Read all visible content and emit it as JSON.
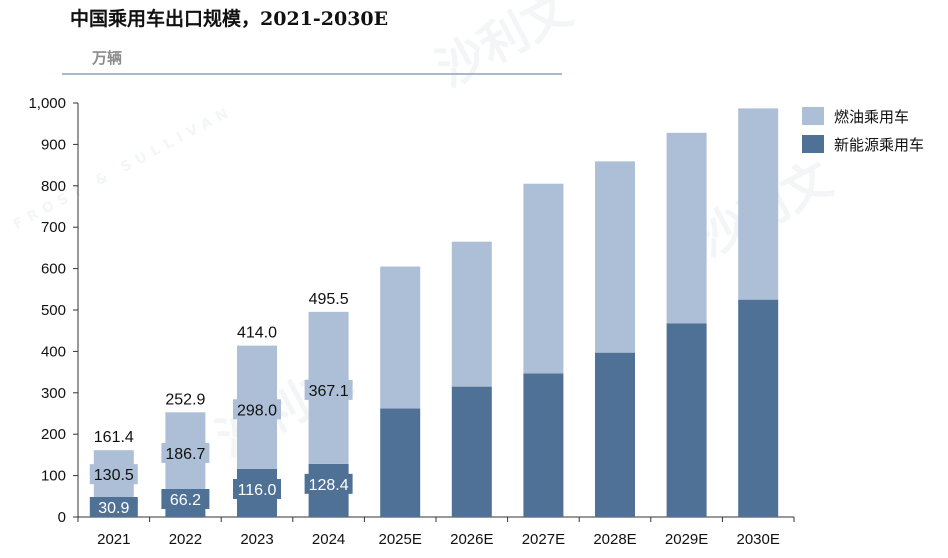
{
  "title": "中国乘用车出口规模，2021-2030E",
  "unit": "万辆",
  "colors": {
    "ice": "#adbfd6",
    "nev": "#4f7196",
    "axis": "#333333",
    "rule": "#a9b9c9"
  },
  "watermarks": [
    "沙利文",
    "沙利文",
    "沙利文",
    "FROST & SULLIVAN"
  ],
  "chart_data": {
    "type": "bar",
    "stacked": true,
    "categories": [
      "2021",
      "2022",
      "2023",
      "2024",
      "2025E",
      "2026E",
      "2027E",
      "2028E",
      "2029E",
      "2030E"
    ],
    "series": [
      {
        "name": "新能源乘用车",
        "values": [
          30.9,
          66.2,
          116.0,
          128.4,
          262,
          315,
          347,
          397,
          468,
          525
        ]
      },
      {
        "name": "燃油乘用车",
        "values": [
          130.5,
          186.7,
          298.0,
          367.1,
          343,
          350,
          458,
          462,
          460,
          462
        ]
      }
    ],
    "totals": [
      161.4,
      252.9,
      414.0,
      495.5,
      null,
      null,
      null,
      null,
      null,
      null
    ],
    "segment_labels": {
      "新能源乘用车": [
        "30.9",
        "66.2",
        "116.0",
        "128.4"
      ],
      "燃油乘用车": [
        "130.5",
        "186.7",
        "298.0",
        "367.1"
      ],
      "total": [
        "161.4",
        "252.9",
        "414.0",
        "495.5"
      ]
    },
    "yticks": [
      "0",
      "100",
      "200",
      "300",
      "400",
      "500",
      "600",
      "700",
      "800",
      "900",
      "1,000"
    ],
    "ylim": [
      0,
      1000
    ],
    "legend_position": "top-right",
    "grid": false
  }
}
